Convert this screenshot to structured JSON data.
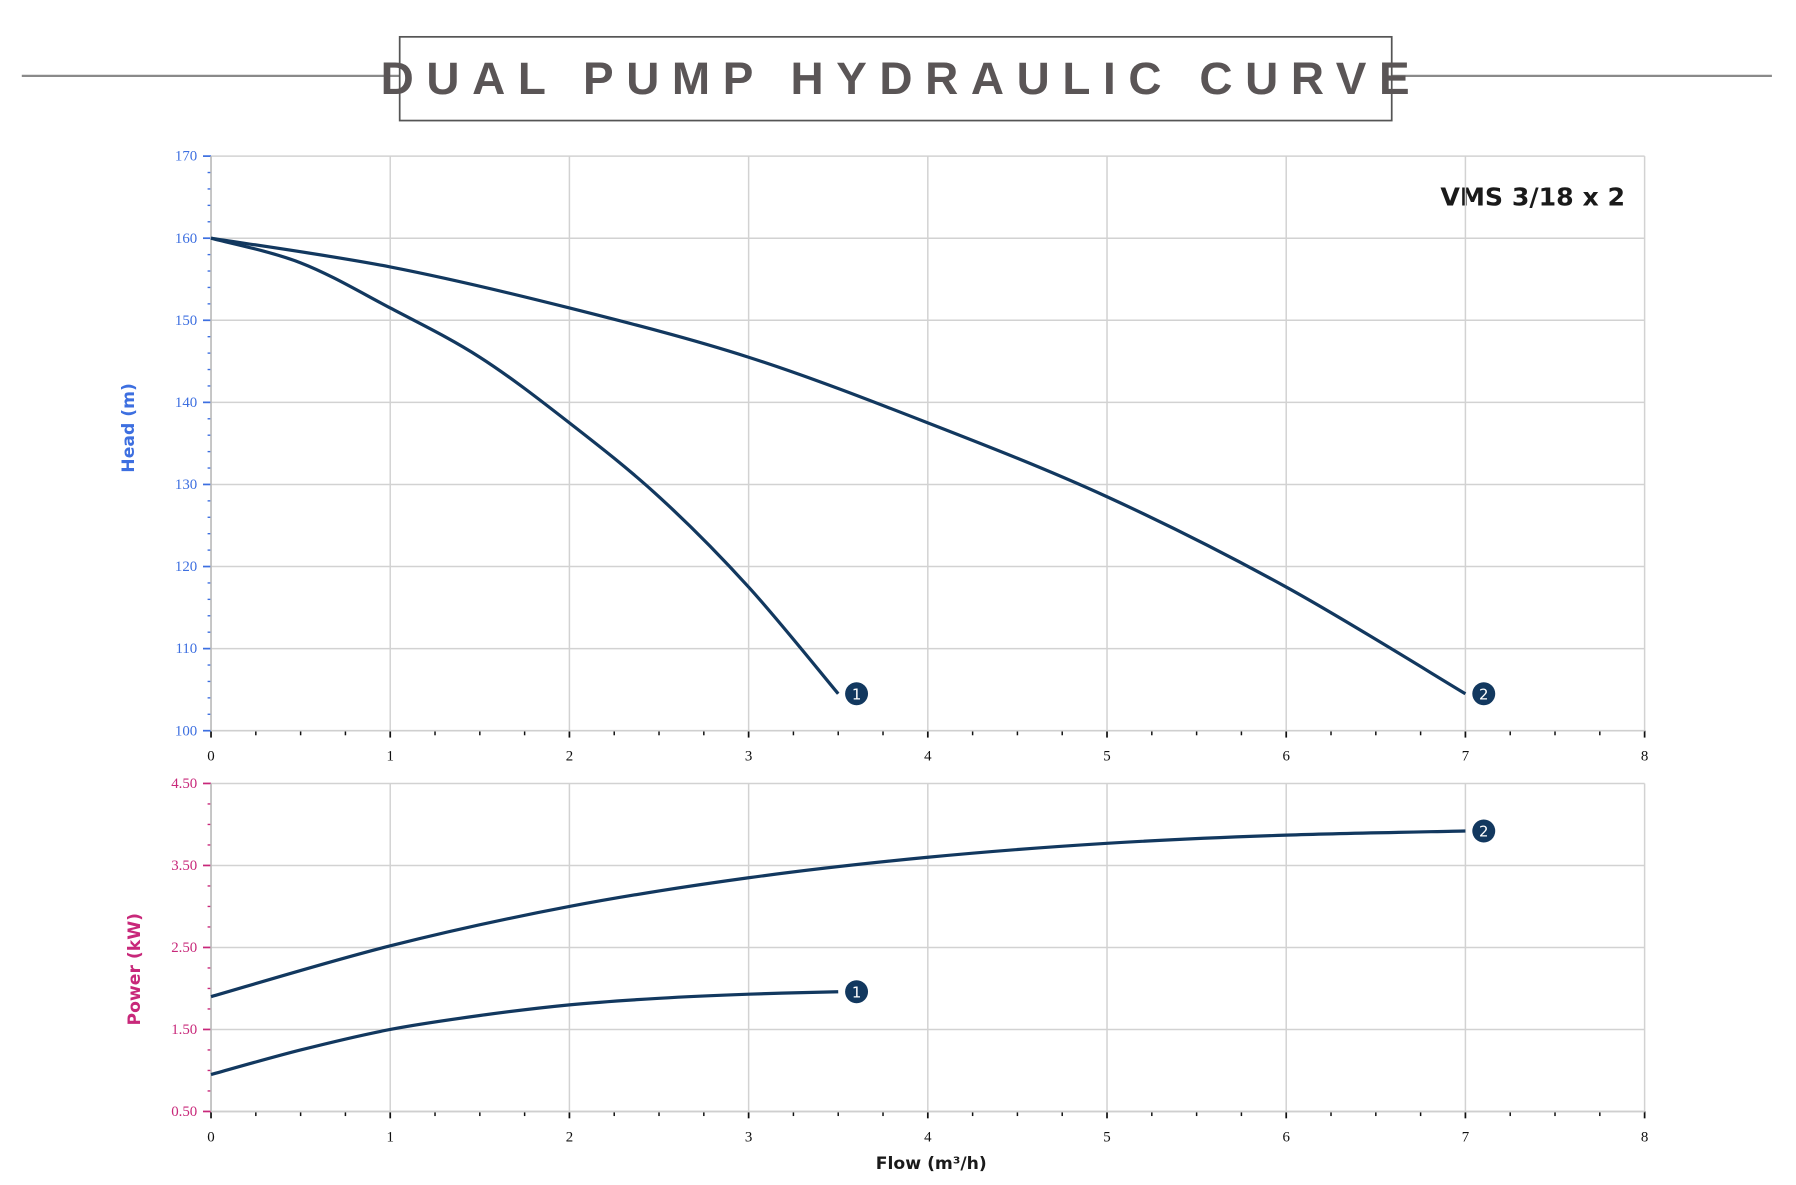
{
  "title": "DUAL PUMP HYDRAULIC CURVE",
  "model_label": "VMS 3/18 x 2",
  "colors": {
    "curve": "#12385f",
    "head_axis": "#3d6fe0",
    "power_axis": "#c8287a",
    "grid": "#d2d2d2"
  },
  "chart_data": [
    {
      "type": "line",
      "ylabel": "Head (m)",
      "xlabel": "",
      "xlim": [
        0,
        8
      ],
      "ylim": [
        100,
        170
      ],
      "xticks": [
        0,
        1,
        2,
        3,
        4,
        5,
        6,
        7,
        8
      ],
      "yticks": [
        100,
        110,
        120,
        130,
        140,
        150,
        160,
        170
      ],
      "grid": true,
      "series": [
        {
          "name": "1",
          "x": [
            0,
            0.5,
            1,
            1.5,
            2,
            2.5,
            3,
            3.5
          ],
          "y": [
            160,
            157,
            151.5,
            145.5,
            137.5,
            128.5,
            117.5,
            104.5
          ]
        },
        {
          "name": "2",
          "x": [
            0,
            1,
            2,
            3,
            4,
            5,
            6,
            7
          ],
          "y": [
            160,
            156.5,
            151.5,
            145.5,
            137.5,
            128.5,
            117.5,
            104.5
          ]
        }
      ]
    },
    {
      "type": "line",
      "ylabel": "Power (kW)",
      "xlabel": "Flow (m³/h)",
      "xlim": [
        0,
        8
      ],
      "ylim": [
        0.5,
        4.5
      ],
      "xticks": [
        0,
        1,
        2,
        3,
        4,
        5,
        6,
        7,
        8
      ],
      "yticks": [
        "0.50",
        "1.50",
        "2.50",
        "3.50",
        "4.50"
      ],
      "grid": true,
      "series": [
        {
          "name": "1",
          "x": [
            0,
            0.5,
            1,
            1.5,
            2,
            2.5,
            3,
            3.5
          ],
          "y": [
            0.95,
            1.25,
            1.5,
            1.67,
            1.8,
            1.88,
            1.93,
            1.96
          ]
        },
        {
          "name": "2",
          "x": [
            0,
            1,
            2,
            3,
            4,
            5,
            6,
            7
          ],
          "y": [
            1.9,
            2.52,
            3.0,
            3.35,
            3.6,
            3.77,
            3.87,
            3.92
          ]
        }
      ]
    }
  ]
}
